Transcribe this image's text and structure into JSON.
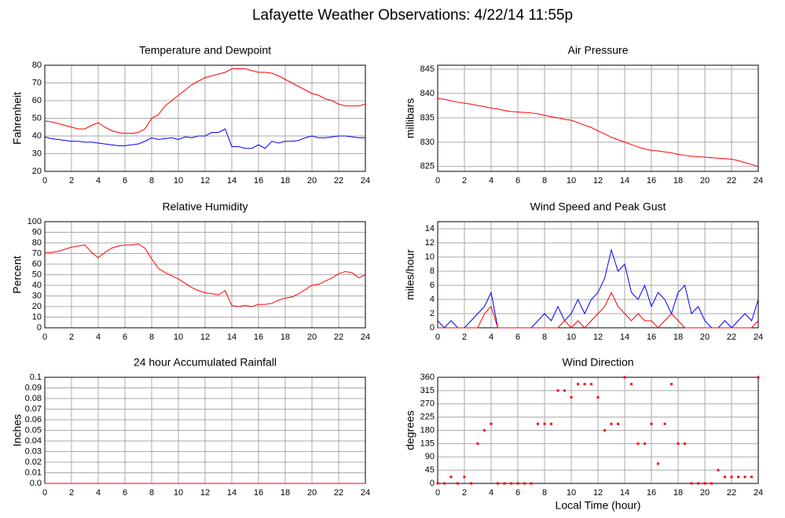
{
  "title": "Lafayette Weather Observations: 4/22/14 11:55p",
  "chart_data": [
    {
      "type": "line",
      "title": "Temperature and Dewpoint",
      "ylabel": "Fahrenheit",
      "x": [
        0,
        0.5,
        1,
        1.5,
        2,
        2.5,
        3,
        3.5,
        4,
        4.5,
        5,
        5.5,
        6,
        6.5,
        7,
        7.5,
        8,
        8.5,
        9,
        9.5,
        10,
        10.5,
        11,
        11.5,
        12,
        12.5,
        13,
        13.5,
        14,
        14.5,
        15,
        15.5,
        16,
        16.5,
        17,
        17.5,
        18,
        18.5,
        19,
        19.5,
        20,
        20.5,
        21,
        21.5,
        22,
        22.5,
        23,
        23.5,
        24
      ],
      "series": [
        {
          "color": "#ff0000",
          "values": [
            48.5,
            48,
            47,
            46,
            45,
            44,
            44,
            46,
            47.5,
            45,
            43,
            42,
            41.5,
            41.5,
            42,
            44,
            50,
            52,
            57,
            60,
            63,
            66,
            69,
            71,
            73,
            74,
            75,
            76,
            78,
            78,
            78,
            77,
            76,
            76,
            75.5,
            74,
            72,
            70,
            68,
            66,
            64,
            63,
            61,
            60,
            58,
            57,
            57,
            57,
            58
          ]
        },
        {
          "color": "#0000ff",
          "values": [
            39.5,
            38.5,
            38,
            37.5,
            37,
            37,
            36.5,
            36.5,
            36,
            35.5,
            35,
            34.5,
            34.5,
            35,
            35.5,
            37,
            39,
            38,
            38.5,
            39,
            38,
            39.5,
            39,
            40,
            40,
            42,
            42,
            44,
            34,
            34,
            33,
            33,
            35,
            33,
            37,
            36,
            37,
            37,
            37.5,
            39,
            40,
            39,
            39,
            39.5,
            40,
            40,
            39.5,
            39,
            39
          ]
        }
      ],
      "xlim": [
        0,
        24
      ],
      "xticks": [
        0,
        2,
        4,
        6,
        8,
        10,
        12,
        14,
        16,
        18,
        20,
        22,
        24
      ],
      "ylim": [
        20,
        80
      ],
      "yticks": [
        20,
        30,
        40,
        50,
        60,
        70,
        80
      ],
      "grid": true
    },
    {
      "type": "line",
      "title": "Air Pressure",
      "ylabel": "millibars",
      "x": [
        0,
        0.5,
        1,
        1.5,
        2,
        2.5,
        3,
        3.5,
        4,
        4.5,
        5,
        5.5,
        6,
        6.5,
        7,
        7.5,
        8,
        8.5,
        9,
        9.5,
        10,
        10.5,
        11,
        11.5,
        12,
        12.5,
        13,
        13.5,
        14,
        14.5,
        15,
        15.5,
        16,
        16.5,
        17,
        17.5,
        18,
        18.5,
        19,
        19.5,
        20,
        20.5,
        21,
        21.5,
        22,
        22.5,
        23,
        23.5,
        24
      ],
      "series": [
        {
          "color": "#ff0000",
          "values": [
            839,
            838.8,
            838.5,
            838.2,
            838,
            837.8,
            837.5,
            837.3,
            837,
            836.8,
            836.5,
            836.3,
            836.2,
            836.1,
            836,
            835.8,
            835.5,
            835.2,
            835,
            834.7,
            834.5,
            834,
            833.5,
            833,
            832.3,
            831.7,
            831,
            830.5,
            830,
            829.5,
            829,
            828.6,
            828.3,
            828.2,
            828,
            827.8,
            827.5,
            827.3,
            827.1,
            827,
            826.9,
            826.8,
            826.7,
            826.6,
            826.5,
            826.2,
            825.8,
            825.4,
            825
          ]
        }
      ],
      "xlim": [
        0,
        24
      ],
      "xticks": [
        0,
        2,
        4,
        6,
        8,
        10,
        12,
        14,
        16,
        18,
        20,
        22,
        24
      ],
      "ylim": [
        824,
        845.8
      ],
      "yticks": [
        825,
        830,
        835,
        840,
        845
      ],
      "grid": true
    },
    {
      "type": "line",
      "title": "Relative Humidity",
      "ylabel": "Percent",
      "x": [
        0,
        0.5,
        1,
        1.5,
        2,
        2.5,
        3,
        3.5,
        4,
        4.5,
        5,
        5.5,
        6,
        6.5,
        7,
        7.5,
        8,
        8.5,
        9,
        9.5,
        10,
        10.5,
        11,
        11.5,
        12,
        12.5,
        13,
        13.5,
        14,
        14.5,
        15,
        15.5,
        16,
        16.5,
        17,
        17.5,
        18,
        18.5,
        19,
        19.5,
        20,
        20.5,
        21,
        21.5,
        22,
        22.5,
        23,
        23.5,
        24
      ],
      "series": [
        {
          "color": "#ff0000",
          "values": [
            71,
            71,
            72,
            74,
            76,
            77,
            78,
            71,
            66,
            71,
            75,
            77,
            78,
            78,
            79,
            75,
            65,
            56,
            52,
            49,
            46,
            42,
            38,
            35,
            33,
            32,
            31,
            35,
            21,
            20,
            21,
            20,
            22,
            22,
            23,
            26,
            28,
            29,
            32,
            36,
            40,
            41,
            44,
            47,
            51,
            53,
            52,
            47,
            50
          ]
        }
      ],
      "xlim": [
        0,
        24
      ],
      "xticks": [
        0,
        2,
        4,
        6,
        8,
        10,
        12,
        14,
        16,
        18,
        20,
        22,
        24
      ],
      "ylim": [
        0,
        100
      ],
      "yticks": [
        0,
        10,
        20,
        30,
        40,
        50,
        60,
        70,
        80,
        90,
        100
      ],
      "grid": true
    },
    {
      "type": "line",
      "title": "Wind Speed and Peak Gust",
      "ylabel": "miles/hour",
      "x": [
        0,
        0.5,
        1,
        1.5,
        2,
        2.5,
        3,
        3.5,
        4,
        4.5,
        5,
        5.5,
        6,
        6.5,
        7,
        7.5,
        8,
        8.5,
        9,
        9.5,
        10,
        10.5,
        11,
        11.5,
        12,
        12.5,
        13,
        13.5,
        14,
        14.5,
        15,
        15.5,
        16,
        16.5,
        17,
        17.5,
        18,
        18.5,
        19,
        19.5,
        20,
        20.5,
        21,
        21.5,
        22,
        22.5,
        23,
        23.5,
        24
      ],
      "series": [
        {
          "color": "#0000ff",
          "values": [
            1,
            0,
            1,
            0,
            0,
            1,
            2,
            3,
            5,
            0,
            0,
            0,
            0,
            0,
            0,
            1,
            2,
            1,
            3,
            1,
            2,
            4,
            2,
            4,
            5,
            7,
            11,
            8,
            9,
            5,
            4,
            6,
            3,
            5,
            4,
            2,
            5,
            6,
            2,
            3,
            1,
            0,
            0,
            1,
            0,
            1,
            2,
            1,
            4
          ]
        },
        {
          "color": "#ff0000",
          "values": [
            0,
            0,
            0,
            0,
            0,
            0,
            0,
            2,
            3,
            0,
            0,
            0,
            0,
            0,
            0,
            0,
            0,
            0,
            0,
            1,
            0,
            1,
            0,
            1,
            2,
            3,
            5,
            3,
            2,
            1,
            2,
            1,
            1,
            0,
            1,
            2,
            1,
            0,
            0,
            0,
            0,
            0,
            0,
            0,
            0,
            0,
            0,
            0,
            1
          ]
        }
      ],
      "xlim": [
        0,
        24
      ],
      "xticks": [
        0,
        2,
        4,
        6,
        8,
        10,
        12,
        14,
        16,
        18,
        20,
        22,
        24
      ],
      "ylim": [
        0,
        15
      ],
      "yticks": [
        0,
        2,
        4,
        6,
        8,
        10,
        12,
        14
      ],
      "grid": true
    },
    {
      "type": "line",
      "title": "24 hour Accumulated Rainfall",
      "ylabel": "Inches",
      "x": [
        0,
        0.5,
        1,
        1.5,
        2,
        2.5,
        3,
        3.5,
        4,
        4.5,
        5,
        5.5,
        6,
        6.5,
        7,
        7.5,
        8,
        8.5,
        9,
        9.5,
        10,
        10.5,
        11,
        11.5,
        12,
        12.5,
        13,
        13.5,
        14,
        14.5,
        15,
        15.5,
        16,
        16.5,
        17,
        17.5,
        18,
        18.5,
        19,
        19.5,
        20,
        20.5,
        21,
        21.5,
        22,
        22.5,
        23,
        23.5,
        24
      ],
      "series": [
        {
          "color": "#ff0000",
          "values": [
            0,
            0,
            0,
            0,
            0,
            0,
            0,
            0,
            0,
            0,
            0,
            0,
            0,
            0,
            0,
            0,
            0,
            0,
            0,
            0,
            0,
            0,
            0,
            0,
            0,
            0,
            0,
            0,
            0,
            0,
            0,
            0,
            0,
            0,
            0,
            0,
            0,
            0,
            0,
            0,
            0,
            0,
            0,
            0,
            0,
            0,
            0,
            0,
            0
          ]
        }
      ],
      "xlim": [
        0,
        24
      ],
      "xticks": [
        0,
        2,
        4,
        6,
        8,
        10,
        12,
        14,
        16,
        18,
        20,
        22,
        24
      ],
      "ylim": [
        0,
        0.1
      ],
      "yticks": [
        {
          "value": 0,
          "label": "0.0"
        },
        0.01,
        0.02,
        0.03,
        0.04,
        0.05,
        0.06,
        0.07,
        0.08,
        0.09,
        0.1
      ],
      "grid": true
    },
    {
      "type": "scatter",
      "title": "Wind Direction",
      "ylabel": "degrees",
      "xlabel": "Local Time (hour)",
      "x": [
        0,
        0.5,
        1,
        1.5,
        2,
        2.5,
        3,
        3.5,
        4,
        4.5,
        5,
        5.5,
        6,
        6.5,
        7,
        7.5,
        8,
        8.5,
        9,
        9.5,
        10,
        10.5,
        11,
        11.5,
        12,
        12.5,
        13,
        13.5,
        14,
        14.5,
        15,
        15.5,
        16,
        16.5,
        17,
        17.5,
        18,
        18.5,
        19,
        19.5,
        20,
        20.5,
        21,
        21.5,
        22,
        22.5,
        23,
        23.5,
        24
      ],
      "series": [
        {
          "color": "#ff0000",
          "values": [
            0,
            0,
            22,
            0,
            22,
            0,
            135,
            180,
            202,
            0,
            0,
            0,
            0,
            0,
            0,
            202,
            202,
            202,
            315,
            315,
            292,
            337,
            337,
            337,
            292,
            180,
            202,
            202,
            360,
            337,
            135,
            135,
            202,
            67,
            202,
            337,
            135,
            135,
            0,
            0,
            0,
            0,
            45,
            22,
            22,
            22,
            22,
            22,
            360
          ]
        }
      ],
      "xlim": [
        0,
        24
      ],
      "xticks": [
        0,
        2,
        4,
        6,
        8,
        10,
        12,
        14,
        16,
        18,
        20,
        22,
        24
      ],
      "ylim": [
        0,
        360
      ],
      "yticks": [
        0,
        45,
        90,
        135,
        180,
        225,
        270,
        315,
        360
      ],
      "grid": true
    }
  ]
}
